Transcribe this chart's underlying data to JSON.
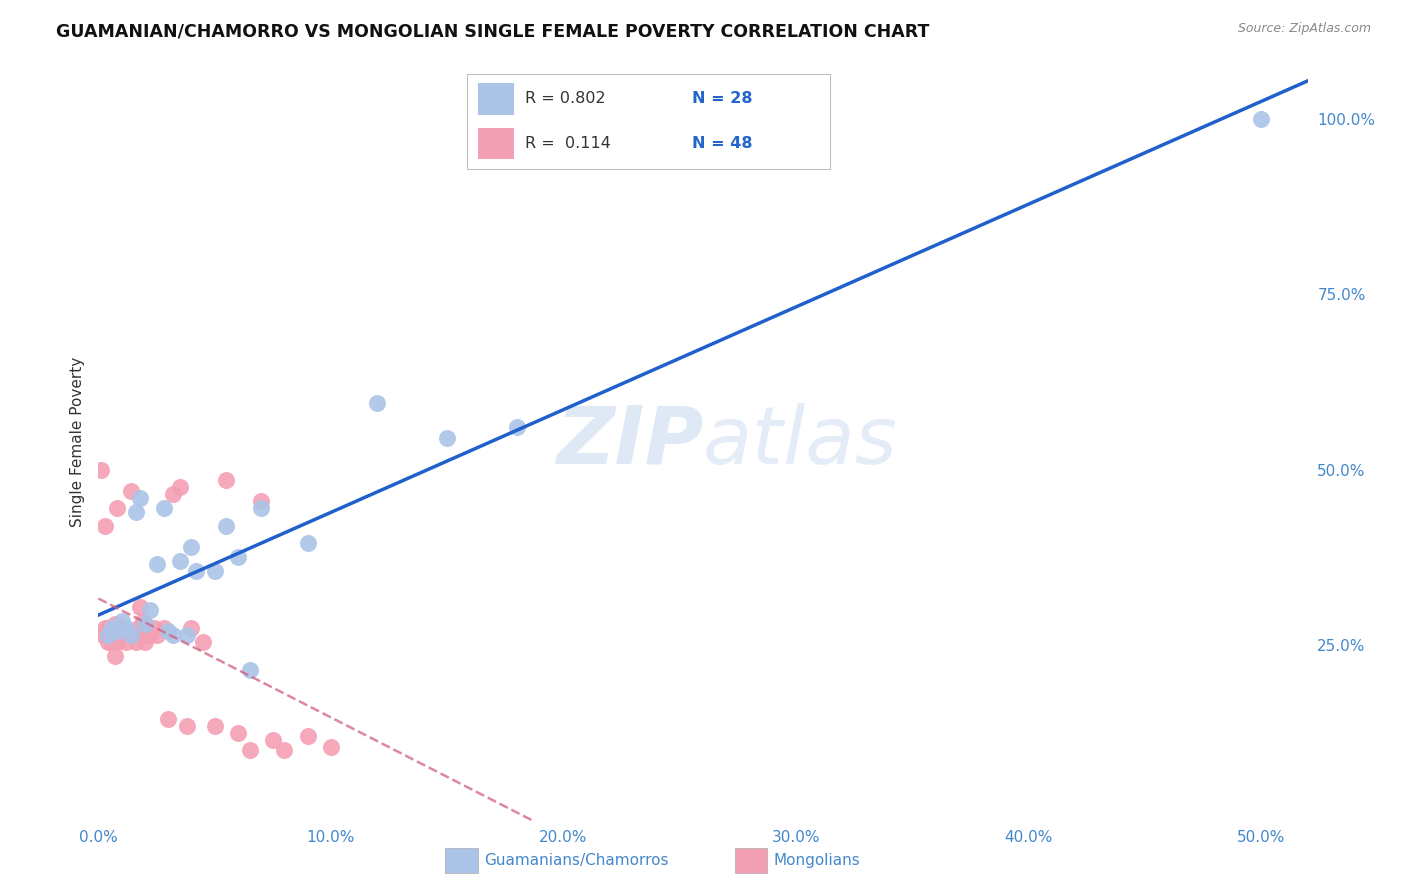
{
  "title": "GUAMANIAN/CHAMORRO VS MONGOLIAN SINGLE FEMALE POVERTY CORRELATION CHART",
  "source": "Source: ZipAtlas.com",
  "ylabel": "Single Female Poverty",
  "legend_label_blue": "Guamanians/Chamorros",
  "legend_label_pink": "Mongolians",
  "watermark_zip": "ZIP",
  "watermark_atlas": "atlas",
  "blue_color": "#aac4e8",
  "pink_color": "#f4a0b4",
  "blue_line_color": "#2060cc",
  "pink_line_color": "#d06080",
  "background_color": "#ffffff",
  "grid_color": "#dddddd",
  "xlim": [
    0.0,
    0.52
  ],
  "ylim": [
    0.0,
    1.08
  ],
  "blue_scatter_x": [
    0.004,
    0.006,
    0.008,
    0.01,
    0.012,
    0.014,
    0.016,
    0.018,
    0.02,
    0.022,
    0.025,
    0.028,
    0.03,
    0.032,
    0.035,
    0.038,
    0.04,
    0.042,
    0.05,
    0.055,
    0.06,
    0.065,
    0.07,
    0.09,
    0.12,
    0.15,
    0.18,
    0.5
  ],
  "blue_scatter_y": [
    0.265,
    0.275,
    0.27,
    0.285,
    0.275,
    0.265,
    0.44,
    0.46,
    0.28,
    0.3,
    0.365,
    0.445,
    0.27,
    0.265,
    0.37,
    0.265,
    0.39,
    0.355,
    0.355,
    0.42,
    0.375,
    0.215,
    0.445,
    0.395,
    0.595,
    0.545,
    0.56,
    1.0
  ],
  "pink_scatter_x": [
    0.001,
    0.002,
    0.003,
    0.003,
    0.004,
    0.004,
    0.005,
    0.005,
    0.006,
    0.006,
    0.007,
    0.007,
    0.008,
    0.008,
    0.009,
    0.009,
    0.01,
    0.01,
    0.011,
    0.012,
    0.013,
    0.014,
    0.015,
    0.016,
    0.017,
    0.018,
    0.019,
    0.02,
    0.021,
    0.022,
    0.024,
    0.025,
    0.028,
    0.03,
    0.032,
    0.035,
    0.038,
    0.04,
    0.045,
    0.05,
    0.055,
    0.06,
    0.065,
    0.07,
    0.075,
    0.08,
    0.09,
    0.1
  ],
  "pink_scatter_y": [
    0.5,
    0.265,
    0.275,
    0.42,
    0.255,
    0.275,
    0.265,
    0.27,
    0.27,
    0.255,
    0.28,
    0.235,
    0.445,
    0.255,
    0.27,
    0.26,
    0.275,
    0.265,
    0.275,
    0.255,
    0.265,
    0.47,
    0.265,
    0.255,
    0.275,
    0.305,
    0.285,
    0.255,
    0.265,
    0.265,
    0.275,
    0.265,
    0.275,
    0.145,
    0.465,
    0.475,
    0.135,
    0.275,
    0.255,
    0.135,
    0.485,
    0.125,
    0.1,
    0.455,
    0.115,
    0.1,
    0.12,
    0.105
  ],
  "blue_R": 0.802,
  "blue_N": 28,
  "pink_R": 0.114,
  "pink_N": 48,
  "tick_color": "#4488cc",
  "label_color": "#333333",
  "legend_text_color": "#333333",
  "legend_N_color": "#2266cc"
}
